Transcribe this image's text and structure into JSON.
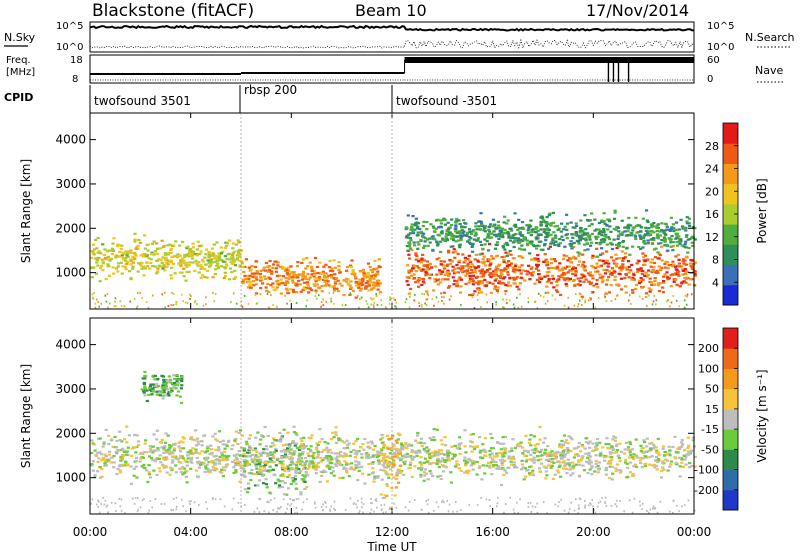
{
  "header": {
    "station": "Blackstone (fitACF)",
    "beam": "Beam 10",
    "date": "17/Nov/2014"
  },
  "side_labels": {
    "nsky": "N.Sky",
    "freq_line1": "Freq.",
    "freq_line2": "[MHz]",
    "cpid": "CPID",
    "nsearch": "N.Search",
    "nave": "Nave"
  },
  "mini_axes": {
    "nsky_ticks": [
      "10^5",
      "10^0"
    ],
    "nsearch_ticks": [
      "10^5",
      "10^0"
    ],
    "freq_ticks": [
      "18",
      "8"
    ],
    "nave_ticks": [
      "60",
      "0"
    ]
  },
  "cpid_segments": [
    {
      "label": "twofsound 3501",
      "start_hour": 0
    },
    {
      "label": "rbsp 200",
      "start_hour": 6
    },
    {
      "label": "twofsound -3501",
      "start_hour": 12
    }
  ],
  "panels": {
    "power": {
      "ylabel": "Slant Range [km]",
      "cbar_label": "Power [dB]"
    },
    "velocity": {
      "ylabel": "Slant Range [km]",
      "cbar_label": "Velocity [m s⁻¹]"
    }
  },
  "y_ticks": [
    "1000",
    "2000",
    "3000",
    "4000"
  ],
  "x_axis": {
    "label": "Time UT",
    "ticks": [
      "00:00",
      "04:00",
      "08:00",
      "12:00",
      "16:00",
      "20:00",
      "00:00"
    ]
  },
  "colorbars": {
    "power": {
      "ticks": [
        "4",
        "8",
        "12",
        "16",
        "20",
        "24",
        "28"
      ],
      "colors": [
        "#1a2bd6",
        "#3b6fb8",
        "#2e8f5a",
        "#4fae3c",
        "#a9cc2e",
        "#f0c41e",
        "#f59a18",
        "#ee5a14",
        "#e31a1c"
      ]
    },
    "velocity": {
      "ticks": [
        "200",
        "100",
        "50",
        "15",
        "-15",
        "-50",
        "-100",
        "-200"
      ],
      "colors": [
        "#2038c8",
        "#2e6ea8",
        "#2f8a4a",
        "#6ccb3a",
        "#bdbdbd",
        "#f7c33a",
        "#f59a1c",
        "#ef6a16",
        "#e0201c"
      ]
    }
  },
  "chart_data": [
    {
      "type": "heatmap",
      "title": "Power [dB]",
      "xlabel": "Time UT",
      "ylabel": "Slant Range [km]",
      "xlim_hours": [
        0,
        24
      ],
      "ylim_km": [
        180,
        4600
      ],
      "clim": [
        0,
        32
      ],
      "scatter_bands": [
        {
          "t0": 0,
          "t1": 6,
          "r_center": 1350,
          "r_width": 420,
          "value": 18
        },
        {
          "t0": 6,
          "t1": 11.5,
          "r_center": 900,
          "r_width": 350,
          "value": 24
        },
        {
          "t0": 12.5,
          "t1": 24,
          "r_center": 1050,
          "r_width": 450,
          "value": 26
        },
        {
          "t0": 12.5,
          "t1": 24,
          "r_center": 1900,
          "r_width": 400,
          "value": 10
        }
      ]
    },
    {
      "type": "heatmap",
      "title": "Velocity [m s⁻¹]",
      "xlabel": "Time UT",
      "ylabel": "Slant Range [km]",
      "xlim_hours": [
        0,
        24
      ],
      "ylim_km": [
        180,
        4600
      ],
      "clim": [
        -200,
        200
      ],
      "scatter_bands": [
        {
          "t0": 6,
          "t1": 8.5,
          "r_center": 1300,
          "r_width": 700,
          "value": -40
        },
        {
          "t0": 0,
          "t1": 24,
          "r_center": 1500,
          "r_width": 500,
          "value": 0
        },
        {
          "t0": 11.5,
          "t1": 12.3,
          "r_center": 1300,
          "r_width": 800,
          "value": 60
        },
        {
          "t0": 2,
          "t1": 3.6,
          "r_center": 3100,
          "r_width": 300,
          "value": -60
        }
      ]
    }
  ]
}
